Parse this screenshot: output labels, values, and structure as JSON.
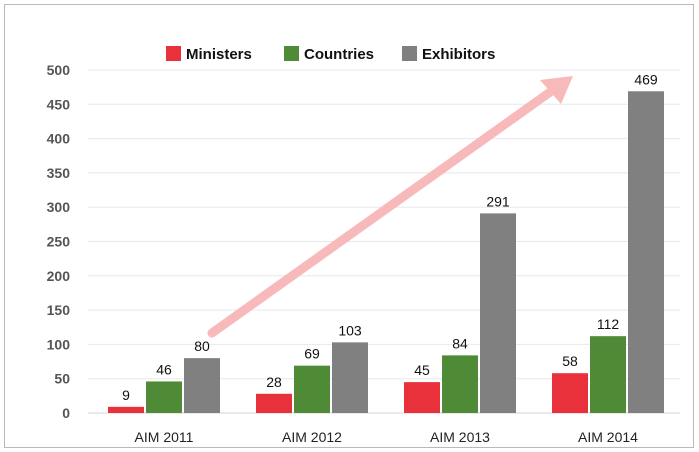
{
  "chart_data": {
    "type": "bar",
    "title": "",
    "xlabel": "",
    "ylabel": "",
    "categories": [
      "AIM 2011",
      "AIM 2012",
      "AIM 2013",
      "AIM 2014"
    ],
    "series": [
      {
        "name": "Ministers",
        "color": "#e8313a",
        "values": [
          9,
          28,
          45,
          58
        ]
      },
      {
        "name": "Countries",
        "color": "#4f8a37",
        "values": [
          46,
          69,
          84,
          112
        ]
      },
      {
        "name": "Exhibitors",
        "color": "#808080",
        "values": [
          80,
          103,
          291,
          469
        ]
      }
    ],
    "ylim": [
      0,
      500
    ],
    "yticks": [
      0,
      50,
      100,
      150,
      200,
      250,
      300,
      350,
      400,
      450,
      500
    ],
    "grid": true,
    "legend": "top-center",
    "annotation": {
      "type": "trend-arrow",
      "color": "#f7b9b9"
    }
  }
}
